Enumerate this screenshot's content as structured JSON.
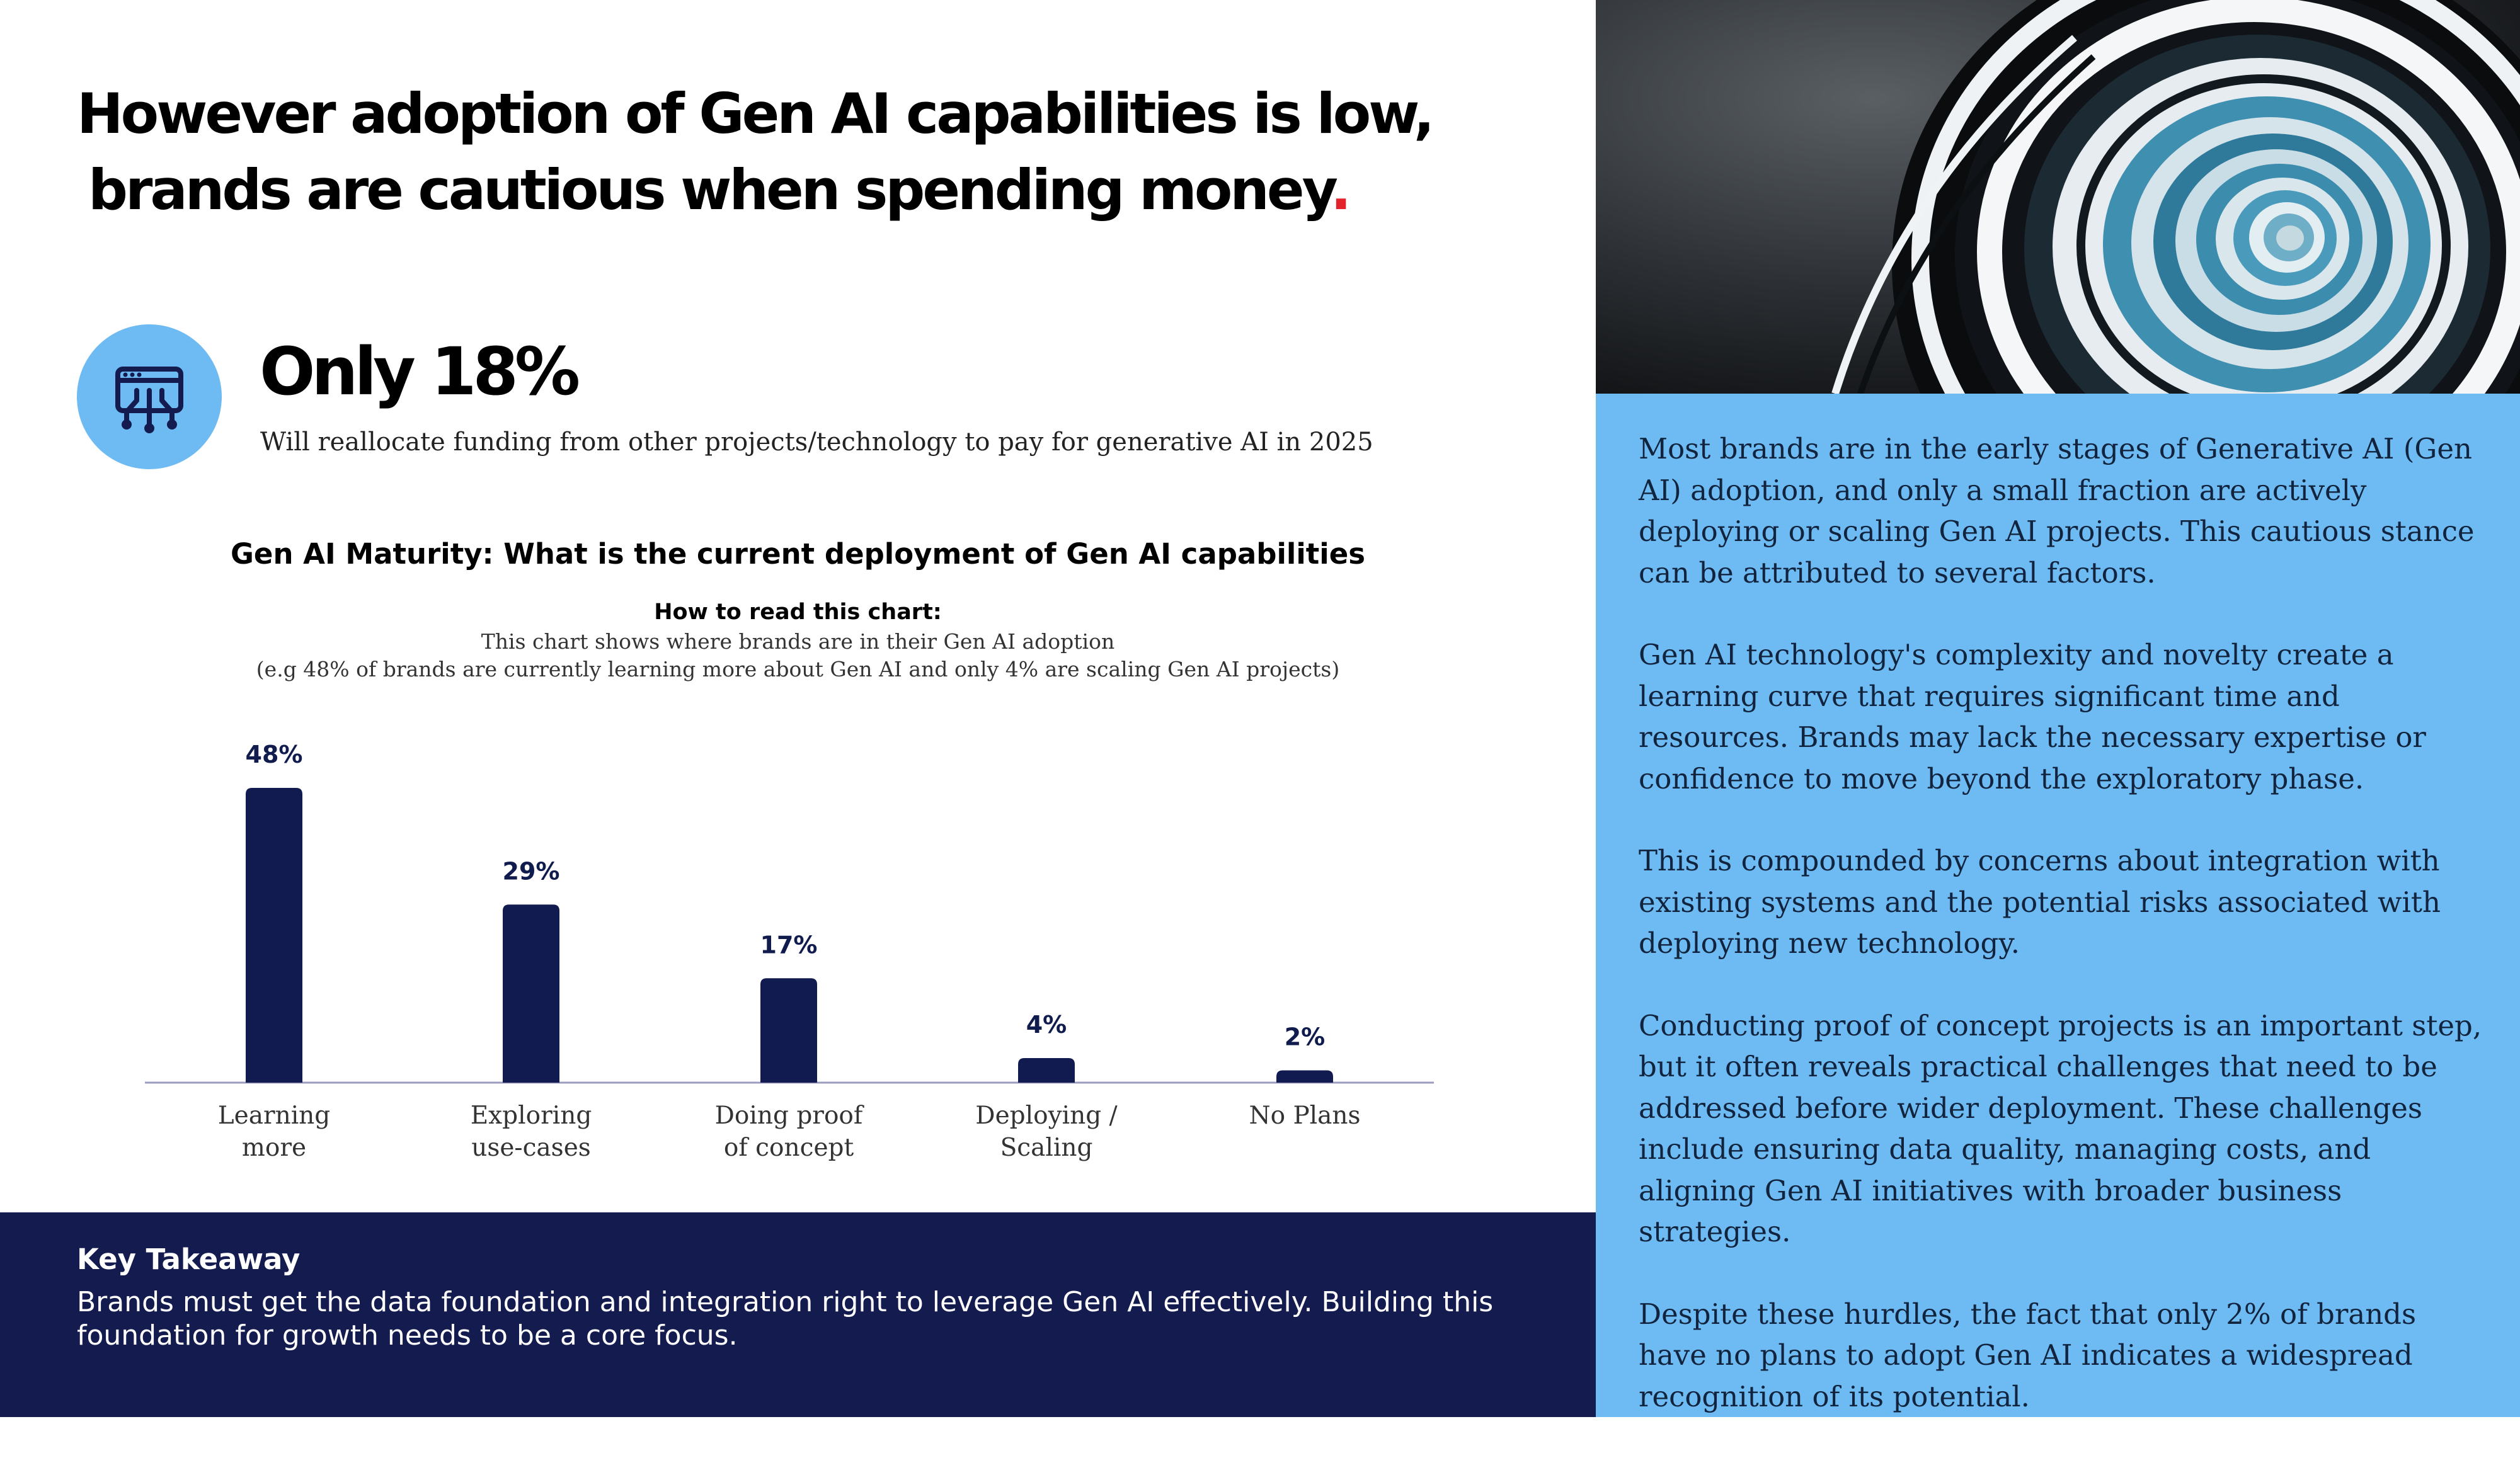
{
  "headline": {
    "line1": "However adoption of Gen AI capabilities is low,",
    "line2": "brands are cautious when spending money",
    "dot": "."
  },
  "stat": {
    "icon": "ai-chip-icon",
    "headline": "Only 18%",
    "description": "Will reallocate funding from other projects/technology to pay for generative AI in 2025"
  },
  "howto": {
    "title": "How to read this chart:",
    "line1": "This chart shows where brands are in their Gen AI adoption",
    "line2": "(e.g 48% of brands are currently learning more about Gen AI and only 4% are scaling Gen AI projects)"
  },
  "chart_data": {
    "type": "bar",
    "title": "Gen AI Maturity: What is the current deployment of Gen AI capabilities",
    "categories": [
      [
        "Learning",
        "more"
      ],
      [
        "Exploring",
        "use-cases"
      ],
      [
        "Doing proof",
        "of concept"
      ],
      [
        "Deploying /",
        "Scaling"
      ],
      [
        "No Plans"
      ]
    ],
    "values": [
      48,
      29,
      17,
      4,
      2
    ],
    "value_labels": [
      "48%",
      "29%",
      "17%",
      "4%",
      "2%"
    ],
    "ylim": [
      0,
      48
    ],
    "grid": false,
    "bar_color": "#121b50"
  },
  "takeaway": {
    "title": "Key Takeaway",
    "text": "Brands must get the data foundation and integration right to leverage Gen AI effectively. Building this foundation for growth needs to be a core focus."
  },
  "sidebar": {
    "image": "spiral-staircase-photo",
    "paragraphs": [
      "Most brands are in the early stages of Generative AI (Gen AI) adoption, and only a small fraction are actively deploying or scaling Gen AI projects. This cautious stance can be attributed to several factors.",
      "Gen AI technology's complexity and novelty create a learning curve that requires significant time and resources. Brands may lack the necessary expertise or confidence to move beyond the exploratory phase.",
      "This is compounded by concerns about integration with existing systems and the potential risks associated with deploying new technology.",
      "Conducting proof of concept projects is an important step, but it often reveals practical challenges that need to be addressed before wider deployment. These challenges include ensuring data quality, managing costs, and aligning Gen AI initiatives with broader business strategies.",
      "Despite these hurdles, the fact that only 2% of brands have no plans to adopt Gen AI indicates a widespread recognition of its potential."
    ]
  },
  "colors": {
    "accent_blue": "#6dbbf2",
    "navy": "#131b4f",
    "red_dot": "#e3232b"
  }
}
